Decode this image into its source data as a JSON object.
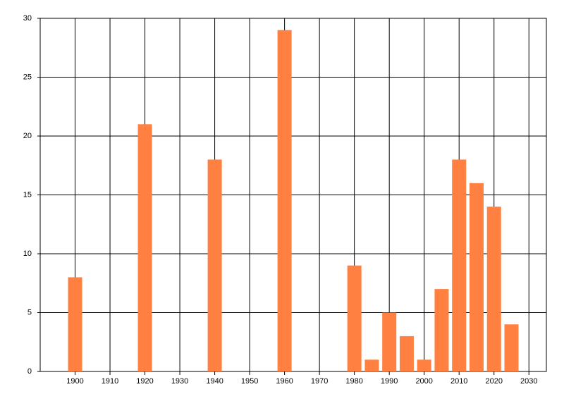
{
  "chart_data": {
    "type": "bar",
    "x": [
      1900,
      1920,
      1940,
      1960,
      1980,
      1985,
      1990,
      1995,
      2000,
      2005,
      2010,
      2015,
      2020,
      2025
    ],
    "values": [
      8,
      21,
      18,
      29,
      9,
      1,
      5,
      3,
      1,
      7,
      18,
      16,
      14,
      4
    ],
    "color": "#ff8040",
    "xlim": [
      1890,
      2035
    ],
    "xticks": [
      1900,
      1910,
      1920,
      1930,
      1940,
      1950,
      1960,
      1970,
      1980,
      1990,
      2000,
      2010,
      2020,
      2030
    ],
    "ylim": [
      0,
      30
    ],
    "yticks": [
      0,
      5,
      10,
      15,
      20,
      25,
      30
    ],
    "grid": true
  }
}
